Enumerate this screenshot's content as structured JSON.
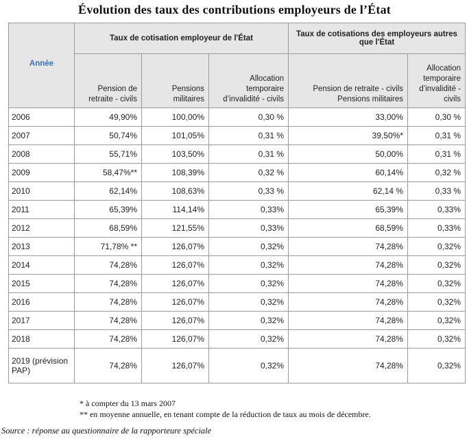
{
  "title": "Évolution des taux des contributions employeurs de l’État",
  "table": {
    "year_header": "Année",
    "group_state": "Taux de cotisation employeur de l'État",
    "group_other": "Taux de cotisations des employeurs autres que l'État",
    "col_civil": "Pension de retraite - civils",
    "col_military": "Pensions militaires",
    "col_ati_state": "Allocation temporaire d’invalidité - civils",
    "col_other_pension": "Pension de retraite - civils Pensions militaires",
    "col_ati_other": "Allocation temporaire d’invalidité - civils",
    "rows": [
      {
        "year": "2006",
        "civil": "49,90%",
        "military": "100,00%",
        "ati_state": "0,30 %",
        "other_pension": "33,00%",
        "ati_other": "0,30 %"
      },
      {
        "year": "2007",
        "civil": "50,74%",
        "military": "101,05%",
        "ati_state": "0,31 %",
        "other_pension": "39,50%*",
        "ati_other": "0,31 %"
      },
      {
        "year": "2008",
        "civil": "55,71%",
        "military": "103,50%",
        "ati_state": "0,31 %",
        "other_pension": "50,00%",
        "ati_other": "0,31 %"
      },
      {
        "year": "2009",
        "civil": "58,47%**",
        "military": "108,39%",
        "ati_state": "0,32 %",
        "other_pension": "60,14%",
        "ati_other": "0,32 %"
      },
      {
        "year": "2010",
        "civil": "62,14%",
        "military": "108,63%",
        "ati_state": "0,33 %",
        "other_pension": "62,14 %",
        "ati_other": "0,33 %"
      },
      {
        "year": "2011",
        "civil": "65,39%",
        "military": "114,14%",
        "ati_state": "0,33%",
        "other_pension": "65,39%",
        "ati_other": "0,33%"
      },
      {
        "year": "2012",
        "civil": "68,59%",
        "military": "121,55%",
        "ati_state": "0,33%",
        "other_pension": "68,59%",
        "ati_other": "0,33%"
      },
      {
        "year": "2013",
        "civil": "71,78% **",
        "military": "126,07%",
        "ati_state": "0,32%",
        "other_pension": "74,28%",
        "ati_other": "0,32%"
      },
      {
        "year": "2014",
        "civil": "74,28%",
        "military": "126,07%",
        "ati_state": "0,32%",
        "other_pension": "74,28%",
        "ati_other": "0,32%"
      },
      {
        "year": "2015",
        "civil": "74,28%",
        "military": "126,07%",
        "ati_state": "0,32%",
        "other_pension": "74,28%",
        "ati_other": "0,32%"
      },
      {
        "year": "2016",
        "civil": "74,28%",
        "military": "126,07%",
        "ati_state": "0,32%",
        "other_pension": "74,28%",
        "ati_other": "0,32%"
      },
      {
        "year": "2017",
        "civil": "74,28%",
        "military": "126,07%",
        "ati_state": "0,32%",
        "other_pension": "74,28%",
        "ati_other": "0,32%"
      },
      {
        "year": "2018",
        "civil": "74,28%",
        "military": "126,07%",
        "ati_state": "0,32%",
        "other_pension": "74,28%",
        "ati_other": "0,32%"
      }
    ],
    "last_row": {
      "year": "2019 (prévision PAP)",
      "civil": "74,28%",
      "military": "126,07%",
      "ati_state": "0,32%",
      "other_pension": "74,28%",
      "ati_other": "0,32%"
    }
  },
  "footnotes": {
    "note1": "* à compter du 13 mars 2007",
    "note2": "** en moyenne annuelle, en tenant compte de la réduction de taux au mois de décembre."
  },
  "source": "Source : réponse au questionnaire de la rapporteure spéciale"
}
